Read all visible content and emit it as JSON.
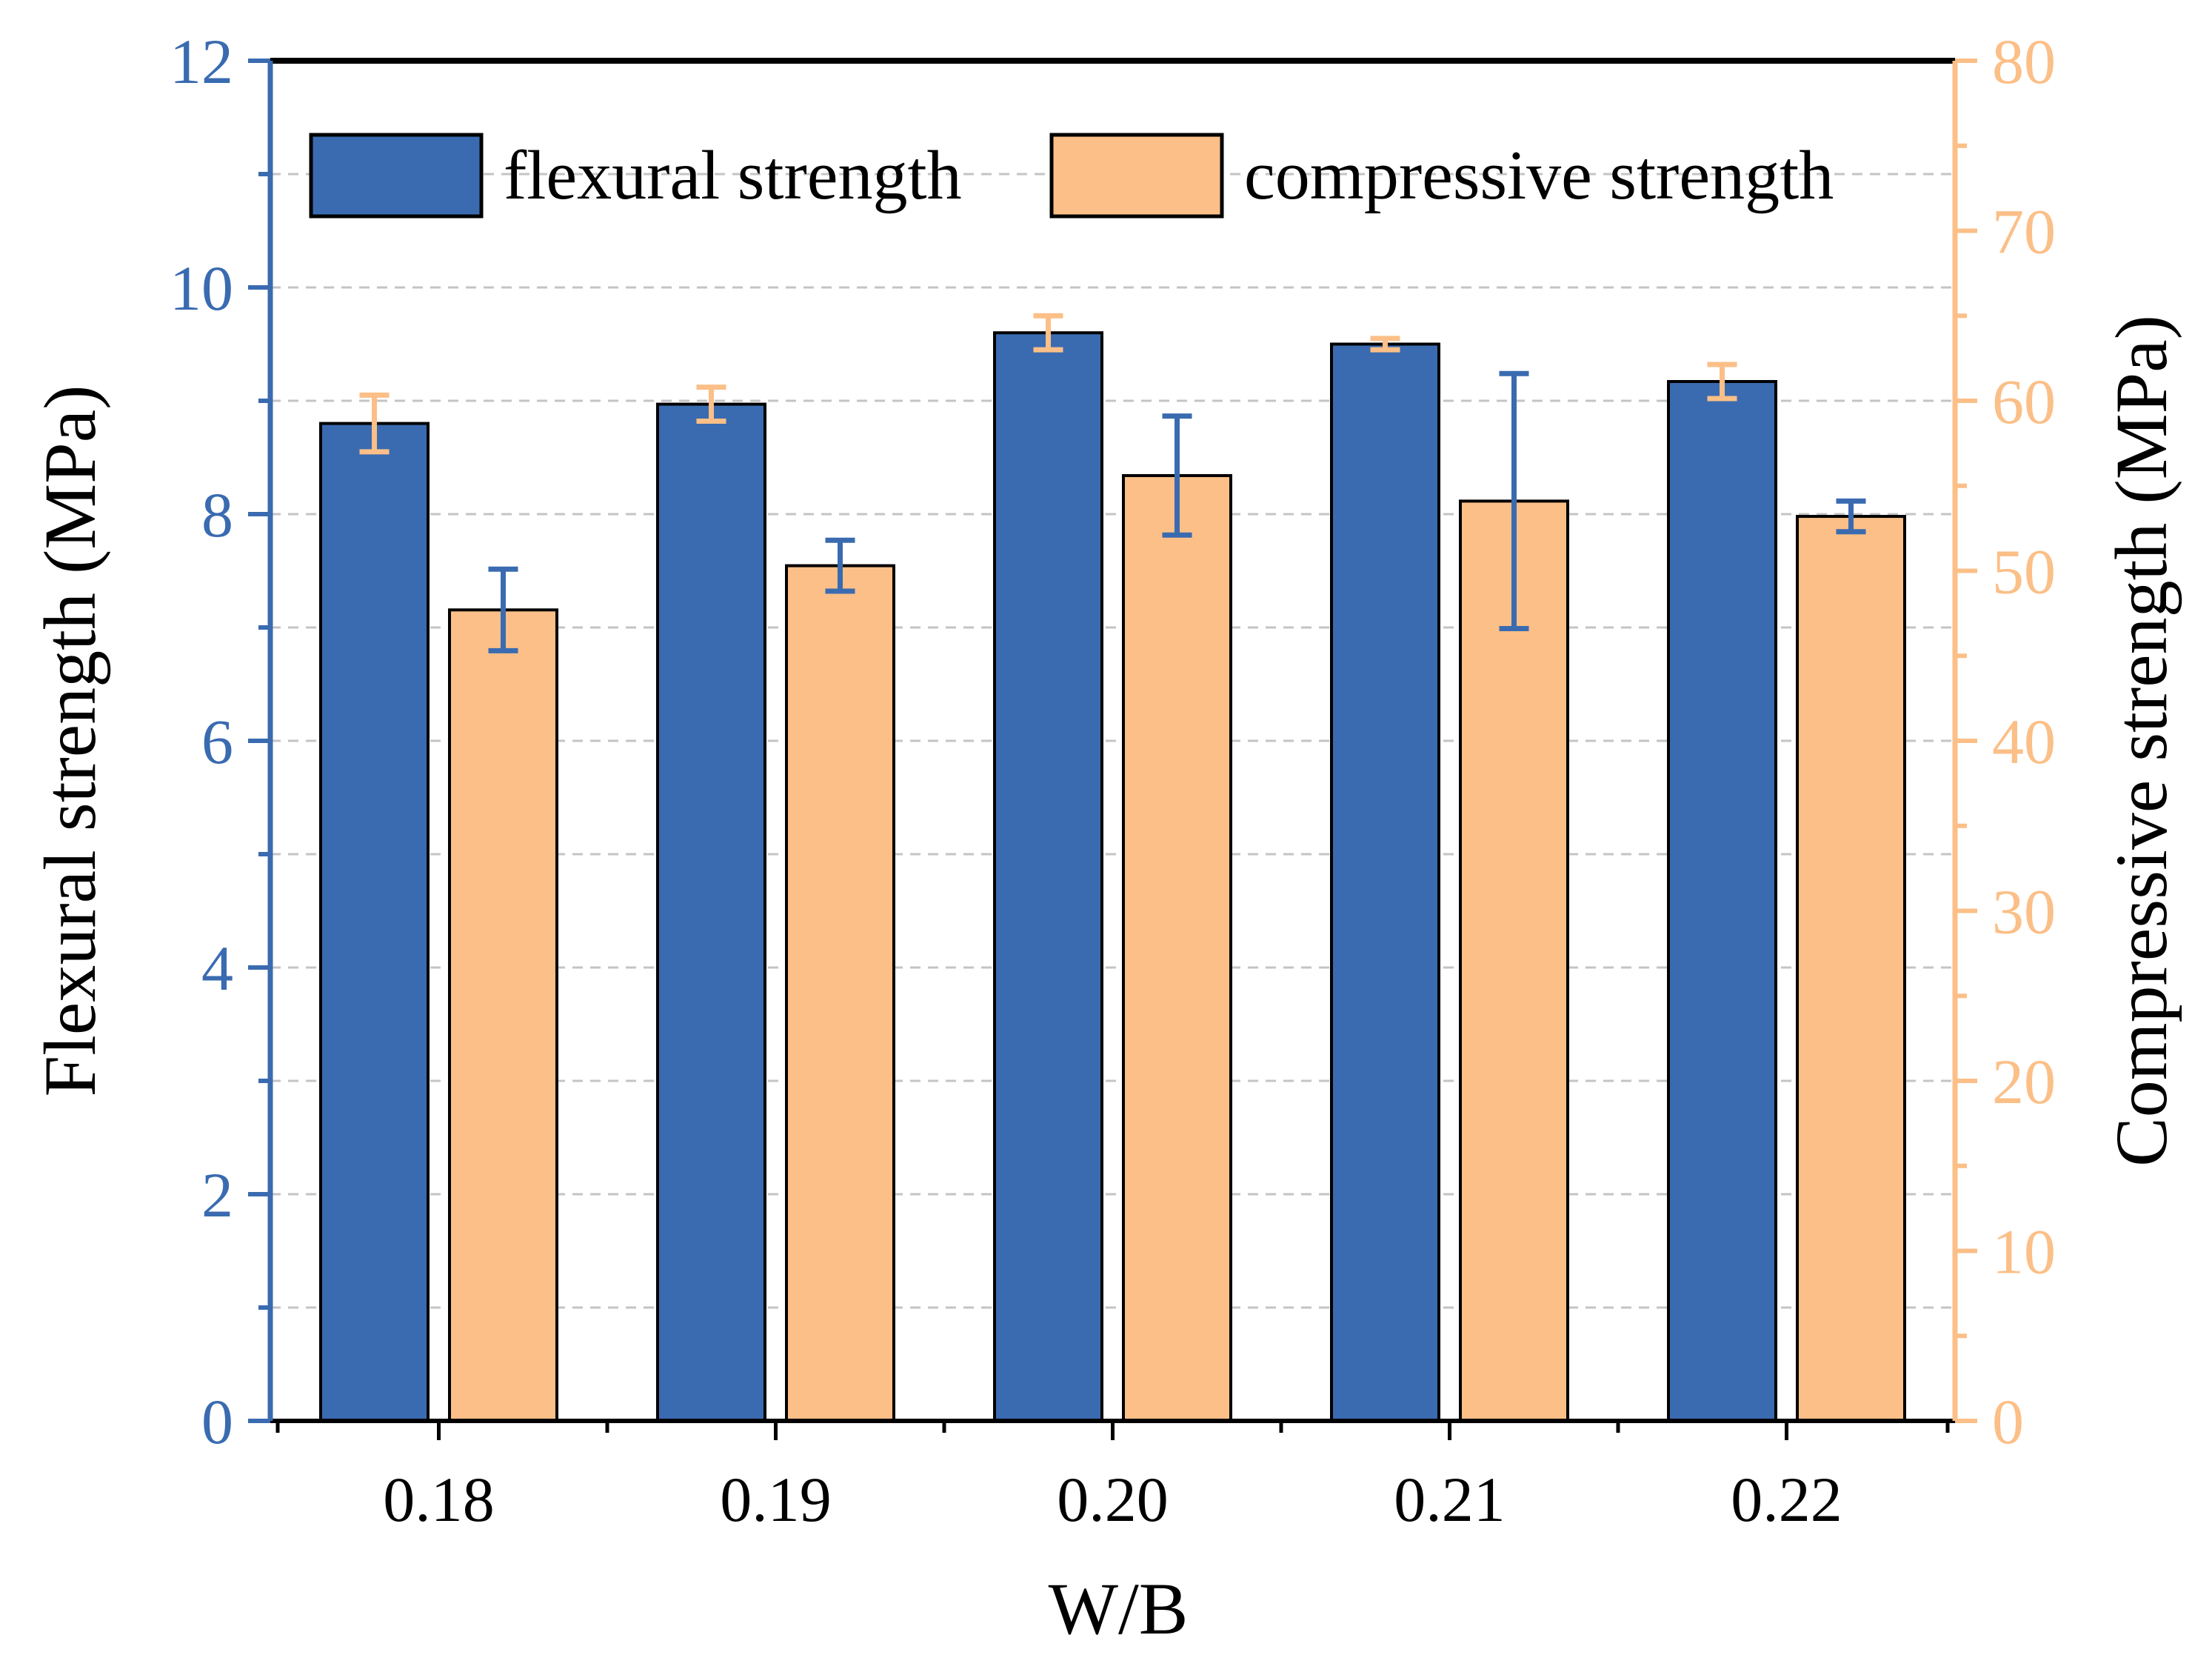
{
  "chart_data": {
    "type": "bar",
    "title": "",
    "xlabel": "W/B",
    "ylabel": "Flexural strength (MPa)",
    "y2label": "Compressive strength (MPa)",
    "categories": [
      "0.18",
      "0.19",
      "0.20",
      "0.21",
      "0.22"
    ],
    "ylim": [
      0,
      12
    ],
    "yticks": [
      "0",
      "2",
      "4",
      "6",
      "8",
      "10",
      "12"
    ],
    "y2lim": [
      0,
      80
    ],
    "y2ticks": [
      "0",
      "10",
      "20",
      "30",
      "40",
      "50",
      "60",
      "70",
      "80"
    ],
    "grid": true,
    "legend_position": "top",
    "series": [
      {
        "name": "flexural strength",
        "axis": "left",
        "color": "#3a6bb0",
        "values": [
          8.8,
          8.97,
          9.6,
          9.5,
          9.17
        ],
        "errors": [
          0.25,
          0.15,
          0.15,
          0.05,
          0.15
        ]
      },
      {
        "name": "compressive strength",
        "axis": "right",
        "color": "#fbbf87",
        "values": [
          47.7,
          50.3,
          55.6,
          54.1,
          53.2
        ],
        "errors": [
          2.4,
          1.5,
          3.5,
          7.5,
          0.9
        ]
      }
    ],
    "error_bar_colors": {
      "flexural": "#fbbf87",
      "compressive": "#3a6bb0"
    }
  }
}
